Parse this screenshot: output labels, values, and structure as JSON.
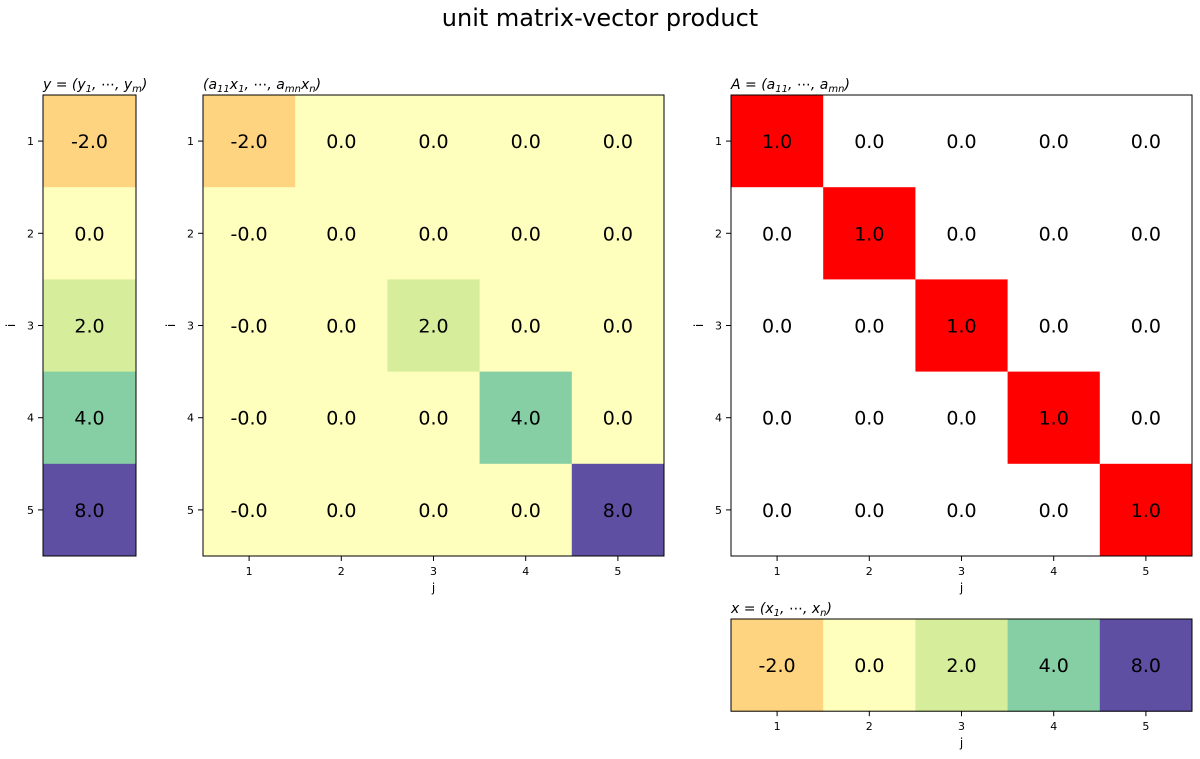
{
  "figure": {
    "title": "unit matrix-vector product"
  },
  "labels": {
    "i_axis": "i",
    "j_axis": "j"
  },
  "chart_data": [
    {
      "id": "y",
      "type": "heatmap",
      "title": "y = (y_1, ..., y_m)",
      "title_parts": [
        "y = (y",
        "1",
        ", ⋯, y",
        "m",
        ")"
      ],
      "ylabel": "i",
      "xlabel": "",
      "yticks": [
        "1",
        "2",
        "3",
        "4",
        "5"
      ],
      "xticks": [],
      "values": [
        [
          -2.0
        ],
        [
          0.0
        ],
        [
          2.0
        ],
        [
          4.0
        ],
        [
          8.0
        ]
      ],
      "cell_labels": [
        [
          "-2.0"
        ],
        [
          "0.0"
        ],
        [
          "2.0"
        ],
        [
          "4.0"
        ],
        [
          "8.0"
        ]
      ],
      "colormap": "Spectral",
      "color_range": [
        -2.0,
        8.0
      ]
    },
    {
      "id": "ax",
      "type": "heatmap",
      "title": "(a_11 x_1, ..., a_mn x_n)",
      "title_parts": [
        "(a",
        "11",
        "x",
        "1",
        ", ⋯, a",
        "mn",
        "x",
        "n",
        ")"
      ],
      "ylabel": "i",
      "xlabel": "j",
      "yticks": [
        "1",
        "2",
        "3",
        "4",
        "5"
      ],
      "xticks": [
        "1",
        "2",
        "3",
        "4",
        "5"
      ],
      "values": [
        [
          -2.0,
          0.0,
          0.0,
          0.0,
          0.0
        ],
        [
          -0.0,
          0.0,
          0.0,
          0.0,
          0.0
        ],
        [
          -0.0,
          0.0,
          2.0,
          0.0,
          0.0
        ],
        [
          -0.0,
          0.0,
          0.0,
          4.0,
          0.0
        ],
        [
          -0.0,
          0.0,
          0.0,
          0.0,
          8.0
        ]
      ],
      "cell_labels": [
        [
          "-2.0",
          "0.0",
          "0.0",
          "0.0",
          "0.0"
        ],
        [
          "-0.0",
          "0.0",
          "0.0",
          "0.0",
          "0.0"
        ],
        [
          "-0.0",
          "0.0",
          "2.0",
          "0.0",
          "0.0"
        ],
        [
          "-0.0",
          "0.0",
          "0.0",
          "4.0",
          "0.0"
        ],
        [
          "-0.0",
          "0.0",
          "0.0",
          "0.0",
          "8.0"
        ]
      ],
      "colormap": "Spectral",
      "color_range": [
        -2.0,
        8.0
      ]
    },
    {
      "id": "A",
      "type": "heatmap",
      "title": "A = (a_11, ..., a_mn)",
      "title_parts": [
        "A = (a",
        "11",
        ", ⋯, a",
        "mn",
        ")"
      ],
      "ylabel": "i",
      "xlabel": "j",
      "yticks": [
        "1",
        "2",
        "3",
        "4",
        "5"
      ],
      "xticks": [
        "1",
        "2",
        "3",
        "4",
        "5"
      ],
      "values": [
        [
          1.0,
          0.0,
          0.0,
          0.0,
          0.0
        ],
        [
          0.0,
          1.0,
          0.0,
          0.0,
          0.0
        ],
        [
          0.0,
          0.0,
          1.0,
          0.0,
          0.0
        ],
        [
          0.0,
          0.0,
          0.0,
          1.0,
          0.0
        ],
        [
          0.0,
          0.0,
          0.0,
          0.0,
          1.0
        ]
      ],
      "cell_labels": [
        [
          "1.0",
          "0.0",
          "0.0",
          "0.0",
          "0.0"
        ],
        [
          "0.0",
          "1.0",
          "0.0",
          "0.0",
          "0.0"
        ],
        [
          "0.0",
          "0.0",
          "1.0",
          "0.0",
          "0.0"
        ],
        [
          "0.0",
          "0.0",
          "0.0",
          "1.0",
          "0.0"
        ],
        [
          "0.0",
          "0.0",
          "0.0",
          "0.0",
          "1.0"
        ]
      ],
      "colormap": "bwr",
      "color_range": [
        -1.0,
        1.0
      ]
    },
    {
      "id": "x",
      "type": "heatmap",
      "title": "x = (x_1, ..., x_n)",
      "title_parts": [
        "x = (x",
        "1",
        ", ⋯, x",
        "n",
        ")"
      ],
      "ylabel": "",
      "xlabel": "j",
      "yticks": [],
      "xticks": [
        "1",
        "2",
        "3",
        "4",
        "5"
      ],
      "values": [
        [
          -2.0,
          0.0,
          2.0,
          4.0,
          8.0
        ]
      ],
      "cell_labels": [
        [
          "-2.0",
          "0.0",
          "2.0",
          "4.0",
          "8.0"
        ]
      ],
      "colormap": "Spectral",
      "color_range": [
        -2.0,
        8.0
      ]
    }
  ],
  "colors": {
    "spectral": {
      "-2.0": "#fed481",
      "-0.0": "#fefebd",
      "0.0": "#fefebd",
      "2.0": "#d6ee9b",
      "4.0": "#86cfa5",
      "8.0": "#5e4fa2"
    },
    "bwr": {
      "1.0": "#ff0000",
      "0.0": "#ffffff"
    },
    "ax_background": "#fefebd"
  }
}
